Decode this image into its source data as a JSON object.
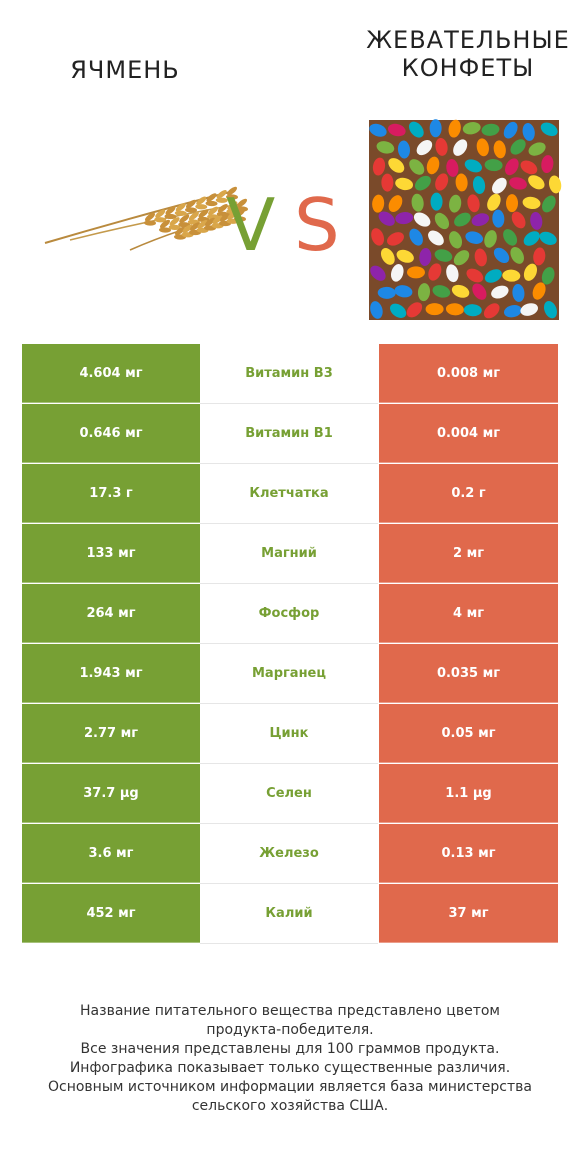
{
  "colors": {
    "left": "#77a034",
    "right": "#e0694c",
    "title_text": "#222222"
  },
  "header": {
    "left_title": "ЯЧМЕНЬ",
    "right_title_lines": [
      "ЖЕВАТЕЛЬНЫЕ",
      "КОНФЕТЫ"
    ],
    "vs_v": "V",
    "vs_s": "S"
  },
  "chart_data": {
    "type": "table",
    "series": [
      {
        "name": "ЯЧМЕНЬ",
        "values": [
          "4.604 мг",
          "0.646 мг",
          "17.3 г",
          "133 мг",
          "264 мг",
          "1.943 мг",
          "2.77 мг",
          "37.7 µg",
          "3.6 мг",
          "452 мг"
        ]
      },
      {
        "name": "ЖЕВАТЕЛЬНЫЕ КОНФЕТЫ",
        "values": [
          "0.008 мг",
          "0.004 мг",
          "0.2 г",
          "2 мг",
          "4 мг",
          "0.035 мг",
          "0.05 мг",
          "1.1 µg",
          "0.13 мг",
          "37 мг"
        ]
      }
    ],
    "categories": [
      "Витамин B3",
      "Витамин B1",
      "Клетчатка",
      "Магний",
      "Фосфор",
      "Марганец",
      "Цинк",
      "Селен",
      "Железо",
      "Калий"
    ]
  },
  "footnote": [
    "Название питательного вещества представлено цветом",
    "продукта-победителя.",
    "Все значения представлены для 100 граммов продукта.",
    "Инфографика показывает только существенные различия.",
    "Основным источником информации является база министерства",
    "сельского хозяйства США."
  ]
}
